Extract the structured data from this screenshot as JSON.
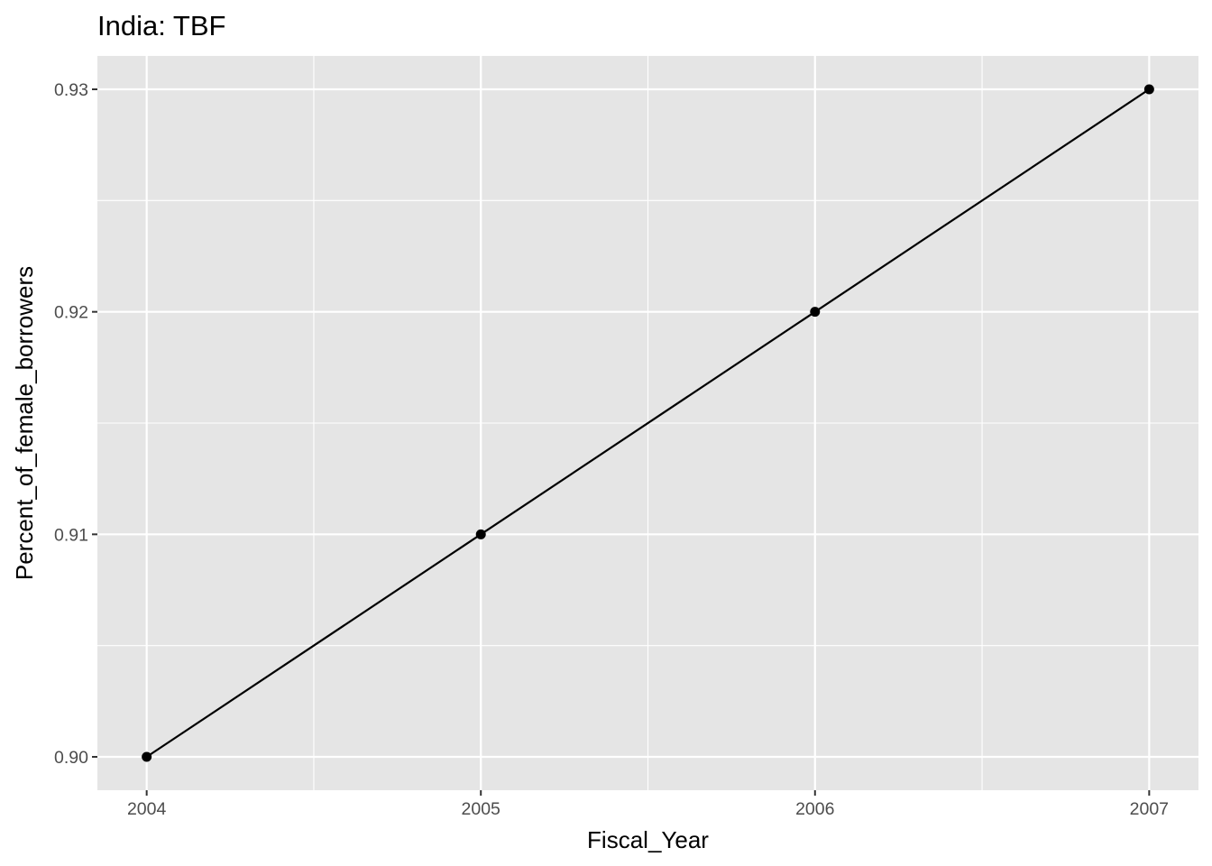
{
  "chart_data": {
    "type": "line",
    "title": "India:  TBF",
    "xlabel": "Fiscal_Year",
    "ylabel": "Percent_of_female_borrowers",
    "x": [
      2004,
      2005,
      2006,
      2007
    ],
    "series": [
      {
        "values": [
          0.9,
          0.91,
          0.92,
          0.93
        ],
        "color": "#000000"
      }
    ],
    "x_ticks": [
      2004,
      2005,
      2006,
      2007
    ],
    "x_tick_labels": [
      "2004",
      "2005",
      "2006",
      "2007"
    ],
    "y_ticks": [
      0.9,
      0.91,
      0.92,
      0.93
    ],
    "y_tick_labels": [
      "0.90",
      "0.91",
      "0.92",
      "0.93"
    ],
    "xlim": [
      2003.8525,
      2007.1475
    ],
    "ylim": [
      0.8985,
      0.9315
    ],
    "grid": true,
    "panel_background": "#e5e5e5",
    "grid_color": "#ffffff",
    "legend": "none"
  }
}
